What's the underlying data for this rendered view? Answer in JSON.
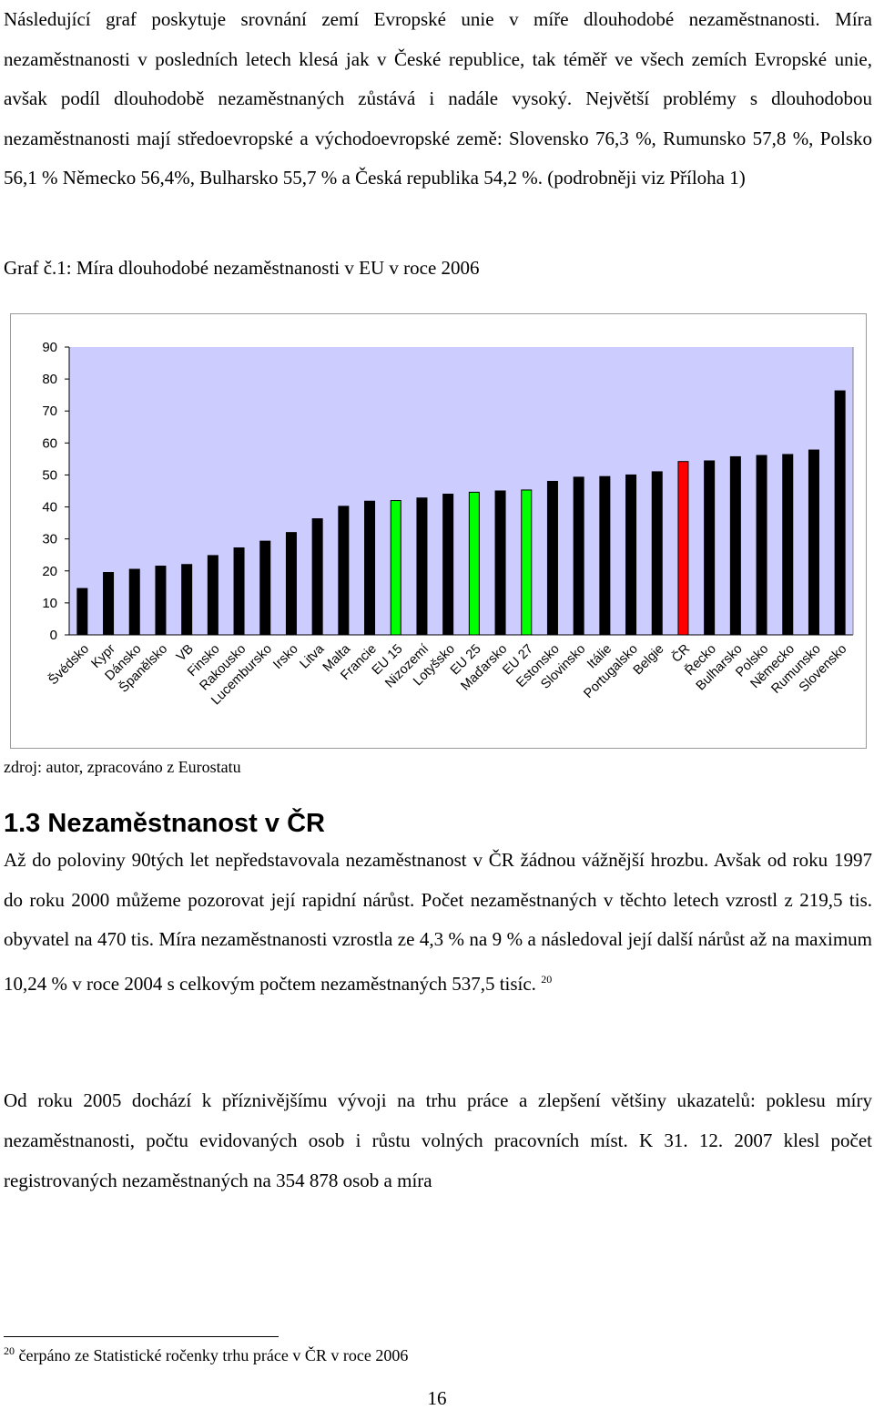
{
  "paragraph_intro": "Následující graf poskytuje srovnání zemí Evropské unie v míře dlouhodobé nezaměstnanosti. Míra nezaměstnanosti v posledních letech klesá jak v České republice, tak téměř ve všech zemích Evropské unie, avšak podíl dlouhodobě nezaměstnaných zůstává i nadále vysoký. Největší problémy s dlouhodobou nezaměstnanosti mají středoevropské a východoevropské země: Slovensko 76,3 %, Rumunsko 57,8 %, Polsko 56,1 % Německo 56,4%, Bulharsko 55,7 % a Česká republika 54,2 %. (podrobněji viz Příloha 1)",
  "figure_caption": "Graf č.1: Míra dlouhodobé nezaměstnanosti v EU v roce 2006",
  "source_note": "zdroj: autor, zpracováno z Eurostatu",
  "section_heading": "1.3 Nezaměstnanost v ČR",
  "paragraph_cr": "Až do poloviny 90tých let nepředstavovala nezaměstnanost v ČR žádnou vážnější hrozbu. Avšak od roku 1997 do roku 2000 můžeme pozorovat její rapidní nárůst. Počet nezaměstnaných v těchto letech vzrostl z 219,5 tis. obyvatel na 470 tis. Míra nezaměstnanosti vzrostla ze 4,3 % na 9 % a následoval její další nárůst až na maximum 10,24 % v roce 2004 s celkovým počtem nezaměstnaných 537,5 tisíc.",
  "footnote_ref": "20",
  "paragraph_2005": "Od roku 2005 dochází k příznivějšímu vývoji na trhu práce a zlepšení většiny ukazatelů: poklesu míry nezaměstnanosti, počtu evidovaných osob i růstu volných pracovních míst. K 31. 12. 2007 klesl počet registrovaných nezaměstnaných na 354 878 osob a míra",
  "footnote_number": "20",
  "footnote_text": "čerpáno ze Statistické ročenky trhu práce v ČR v roce 2006",
  "page_number": "16",
  "chart_data": {
    "type": "bar",
    "title": "",
    "xlabel": "",
    "ylabel": "",
    "ylim": [
      0,
      90
    ],
    "yticks": [
      0,
      10,
      20,
      30,
      40,
      50,
      60,
      70,
      80,
      90
    ],
    "grid": false,
    "legend": "none",
    "colors": {
      "plot_background": "#ccccff",
      "bar_default": "#000000",
      "bar_highlight_eu": "#00ff00",
      "bar_highlight_cz": "#ff0000"
    },
    "categories": [
      "Švédsko",
      "Kypr",
      "Dánsko",
      "Španělsko",
      "VB",
      "Finsko",
      "Rakousko",
      "Lucembursko",
      "Irsko",
      "Litva",
      "Malta",
      "Francie",
      "EU 15",
      "Nizozemí",
      "Lotyšsko",
      "EU 25",
      "Maďarsko",
      "EU 27",
      "Estonsko",
      "Slovinsko",
      "Itálie",
      "Portugalsko",
      "Belgie",
      "ČR",
      "Řecko",
      "Bulharsko",
      "Polsko",
      "Německo",
      "Rumunsko",
      "Slovensko"
    ],
    "values": [
      14.5,
      19.5,
      20.5,
      21.5,
      22.0,
      24.8,
      27.2,
      29.3,
      32.0,
      36.3,
      40.2,
      41.8,
      42.0,
      42.8,
      44.0,
      44.6,
      45.0,
      45.3,
      48.0,
      49.3,
      49.5,
      50.0,
      51.0,
      54.2,
      54.4,
      55.7,
      56.1,
      56.4,
      57.8,
      76.3
    ],
    "highlight": [
      "none",
      "none",
      "none",
      "none",
      "none",
      "none",
      "none",
      "none",
      "none",
      "none",
      "none",
      "none",
      "eu",
      "none",
      "none",
      "eu",
      "none",
      "eu",
      "none",
      "none",
      "none",
      "none",
      "none",
      "cz",
      "none",
      "none",
      "none",
      "none",
      "none",
      "none"
    ]
  }
}
